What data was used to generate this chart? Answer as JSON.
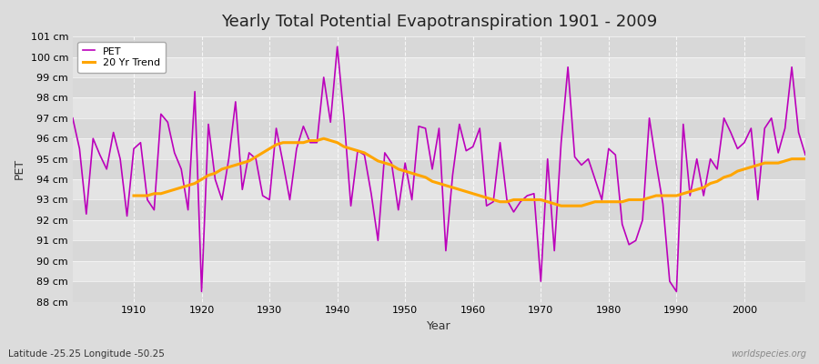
{
  "title": "Yearly Total Potential Evapotranspiration 1901 - 2009",
  "xlabel": "Year",
  "ylabel": "PET",
  "subtitle": "Latitude -25.25 Longitude -50.25",
  "watermark": "worldspecies.org",
  "ylim": [
    88,
    101
  ],
  "yticks": [
    88,
    89,
    90,
    91,
    92,
    93,
    94,
    95,
    96,
    97,
    98,
    99,
    100,
    101
  ],
  "xticks": [
    1910,
    1920,
    1930,
    1940,
    1950,
    1960,
    1970,
    1980,
    1990,
    2000
  ],
  "pet_color": "#BB00BB",
  "trend_color": "#FFA500",
  "bg_outer": "#DCDCDC",
  "bg_inner_even": "#DCDCDC",
  "bg_inner_odd": "#E8E8E8",
  "legend_pet": "PET",
  "legend_trend": "20 Yr Trend",
  "years": [
    1901,
    1902,
    1903,
    1904,
    1905,
    1906,
    1907,
    1908,
    1909,
    1910,
    1911,
    1912,
    1913,
    1914,
    1915,
    1916,
    1917,
    1918,
    1919,
    1920,
    1921,
    1922,
    1923,
    1924,
    1925,
    1926,
    1927,
    1928,
    1929,
    1930,
    1931,
    1932,
    1933,
    1934,
    1935,
    1936,
    1937,
    1938,
    1939,
    1940,
    1941,
    1942,
    1943,
    1944,
    1945,
    1946,
    1947,
    1948,
    1949,
    1950,
    1951,
    1952,
    1953,
    1954,
    1955,
    1956,
    1957,
    1958,
    1959,
    1960,
    1961,
    1962,
    1963,
    1964,
    1965,
    1966,
    1967,
    1968,
    1969,
    1970,
    1971,
    1972,
    1973,
    1974,
    1975,
    1976,
    1977,
    1978,
    1979,
    1980,
    1981,
    1982,
    1983,
    1984,
    1985,
    1986,
    1987,
    1988,
    1989,
    1990,
    1991,
    1992,
    1993,
    1994,
    1995,
    1996,
    1997,
    1998,
    1999,
    2000,
    2001,
    2002,
    2003,
    2004,
    2005,
    2006,
    2007,
    2008,
    2009
  ],
  "pet_values": [
    97.0,
    95.5,
    92.3,
    96.0,
    95.2,
    94.5,
    96.3,
    95.0,
    92.2,
    95.5,
    95.8,
    93.0,
    92.5,
    97.2,
    96.8,
    95.3,
    94.5,
    92.5,
    98.3,
    88.5,
    96.7,
    94.0,
    93.0,
    95.0,
    97.8,
    93.5,
    95.3,
    95.0,
    93.2,
    93.0,
    96.5,
    94.8,
    93.0,
    95.5,
    96.6,
    95.8,
    95.8,
    99.0,
    96.8,
    100.5,
    97.0,
    92.7,
    95.4,
    95.2,
    93.3,
    91.0,
    95.3,
    94.8,
    92.5,
    94.8,
    93.0,
    96.6,
    96.5,
    94.5,
    96.5,
    90.5,
    94.2,
    96.7,
    95.4,
    95.6,
    96.5,
    92.7,
    92.9,
    95.8,
    93.0,
    92.4,
    92.9,
    93.2,
    93.3,
    89.0,
    95.0,
    90.5,
    95.8,
    99.5,
    95.1,
    94.7,
    95.0,
    94.0,
    93.0,
    95.5,
    95.2,
    91.8,
    90.8,
    91.0,
    92.0,
    97.0,
    94.8,
    92.8,
    89.0,
    88.5,
    96.7,
    93.2,
    95.0,
    93.2,
    95.0,
    94.5,
    97.0,
    96.3,
    95.5,
    95.8,
    96.5,
    93.0,
    96.5,
    97.0,
    95.3,
    96.5,
    99.5,
    96.3,
    95.2
  ],
  "trend_values": [
    null,
    null,
    null,
    null,
    null,
    null,
    null,
    null,
    null,
    93.2,
    93.2,
    93.2,
    93.3,
    93.3,
    93.4,
    93.5,
    93.6,
    93.7,
    93.8,
    94.0,
    94.2,
    94.3,
    94.5,
    94.6,
    94.7,
    94.8,
    94.9,
    95.1,
    95.3,
    95.5,
    95.7,
    95.8,
    95.8,
    95.8,
    95.8,
    95.9,
    95.9,
    96.0,
    95.9,
    95.8,
    95.6,
    95.5,
    95.4,
    95.3,
    95.1,
    94.9,
    94.8,
    94.7,
    94.5,
    94.4,
    94.3,
    94.2,
    94.1,
    93.9,
    93.8,
    93.7,
    93.6,
    93.5,
    93.4,
    93.3,
    93.2,
    93.1,
    93.0,
    92.9,
    92.9,
    93.0,
    93.0,
    93.0,
    93.0,
    93.0,
    92.9,
    92.8,
    92.7,
    92.7,
    92.7,
    92.7,
    92.8,
    92.9,
    92.9,
    92.9,
    92.9,
    92.9,
    93.0,
    93.0,
    93.0,
    93.1,
    93.2,
    93.2,
    93.2,
    93.2,
    93.3,
    93.4,
    93.5,
    93.6,
    93.8,
    93.9,
    94.1,
    94.2,
    94.4,
    94.5,
    94.6,
    94.7,
    94.8,
    94.8,
    94.8,
    94.9,
    95.0,
    95.0,
    95.0
  ]
}
